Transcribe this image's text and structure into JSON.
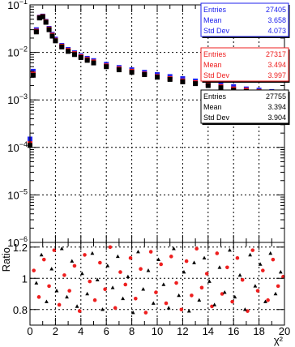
{
  "chart_data": [
    {
      "type": "scatter",
      "panel": "main",
      "x_range": [
        0,
        20
      ],
      "ylim": [
        1e-06,
        0.1
      ],
      "y_scale": "log",
      "grid": true,
      "y_ticks": [
        {
          "value": 0.1,
          "base": "10",
          "exp": "−1"
        },
        {
          "value": 0.01,
          "base": "10",
          "exp": "−2"
        },
        {
          "value": 0.001,
          "base": "10",
          "exp": "−3"
        },
        {
          "value": 0.0001,
          "base": "10",
          "exp": "−4"
        },
        {
          "value": 1e-05,
          "base": "10",
          "exp": "−5"
        },
        {
          "value": 1e-06,
          "base": "10",
          "exp": "−6"
        }
      ],
      "series": [
        {
          "color": "#1f22ee",
          "points": [
            [
              0.0,
              0.00015
            ],
            [
              0.25,
              0.004
            ],
            [
              0.5,
              0.03
            ],
            [
              0.75,
              0.055
            ],
            [
              1.0,
              0.058
            ],
            [
              1.25,
              0.045
            ],
            [
              1.5,
              0.032
            ],
            [
              1.75,
              0.024
            ],
            [
              2.0,
              0.019
            ],
            [
              2.5,
              0.014
            ],
            [
              3.0,
              0.0115
            ],
            [
              3.5,
              0.0098
            ],
            [
              4.0,
              0.0085
            ],
            [
              4.5,
              0.0075
            ],
            [
              5.0,
              0.0067
            ],
            [
              6.0,
              0.0056
            ],
            [
              7.0,
              0.0048
            ],
            [
              8.0,
              0.0043
            ],
            [
              9.0,
              0.0038
            ],
            [
              10.0,
              0.0034
            ],
            [
              11.0,
              0.0031
            ],
            [
              12.0,
              0.0028
            ],
            [
              13.0,
              0.0025
            ],
            [
              14.0,
              0.0023
            ],
            [
              15.0,
              0.0021
            ],
            [
              16.0,
              0.0019
            ],
            [
              17.0,
              0.0017
            ],
            [
              18.0,
              0.0016
            ],
            [
              19.0,
              0.0015
            ],
            [
              19.75,
              0.0012
            ]
          ]
        },
        {
          "color": "#ee1f1f",
          "points": [
            [
              0.0,
              0.00012
            ],
            [
              0.25,
              0.0035
            ],
            [
              0.5,
              0.028
            ],
            [
              0.75,
              0.054
            ],
            [
              1.0,
              0.057
            ],
            [
              1.25,
              0.044
            ],
            [
              1.5,
              0.031
            ],
            [
              1.75,
              0.023
            ],
            [
              2.0,
              0.018
            ],
            [
              2.5,
              0.0135
            ],
            [
              3.0,
              0.011
            ],
            [
              3.5,
              0.0094
            ],
            [
              4.0,
              0.0081
            ],
            [
              4.5,
              0.0071
            ],
            [
              5.0,
              0.0063
            ],
            [
              6.0,
              0.0052
            ],
            [
              7.0,
              0.0045
            ],
            [
              8.0,
              0.004
            ],
            [
              9.0,
              0.0035
            ],
            [
              10.0,
              0.0031
            ],
            [
              11.0,
              0.0028
            ],
            [
              12.0,
              0.0025
            ],
            [
              13.0,
              0.0023
            ],
            [
              14.0,
              0.0021
            ],
            [
              15.0,
              0.0019
            ],
            [
              16.0,
              0.0017
            ],
            [
              17.0,
              0.0016
            ],
            [
              18.0,
              0.0015
            ],
            [
              19.0,
              0.0014
            ],
            [
              19.75,
              0.0013
            ]
          ]
        },
        {
          "color": "#000000",
          "points": [
            [
              0.0,
              0.00011
            ],
            [
              0.25,
              0.0033
            ],
            [
              0.5,
              0.027
            ],
            [
              0.75,
              0.053
            ],
            [
              1.0,
              0.056
            ],
            [
              1.25,
              0.043
            ],
            [
              1.5,
              0.03
            ],
            [
              1.75,
              0.022
            ],
            [
              2.0,
              0.0175
            ],
            [
              2.5,
              0.013
            ],
            [
              3.0,
              0.0105
            ],
            [
              3.5,
              0.009
            ],
            [
              4.0,
              0.0078
            ],
            [
              4.5,
              0.0068
            ],
            [
              5.0,
              0.006
            ],
            [
              6.0,
              0.005
            ],
            [
              7.0,
              0.0043
            ],
            [
              8.0,
              0.0038
            ],
            [
              9.0,
              0.0034
            ],
            [
              10.0,
              0.003
            ],
            [
              11.0,
              0.0027
            ],
            [
              12.0,
              0.0024
            ],
            [
              13.0,
              0.0022
            ],
            [
              14.0,
              0.002
            ],
            [
              15.0,
              0.0018
            ],
            [
              16.0,
              0.0016
            ],
            [
              17.0,
              0.0015
            ],
            [
              18.0,
              0.0014
            ],
            [
              19.0,
              0.0013
            ],
            [
              19.75,
              0.0012
            ]
          ]
        }
      ]
    },
    {
      "type": "scatter",
      "panel": "ratio",
      "ylabel": "Ratio",
      "xlabel": "χ²",
      "x_range": [
        0,
        20
      ],
      "ylim": [
        0.7,
        1.23
      ],
      "grid": true,
      "x_ticks": [
        "0",
        "2",
        "4",
        "6",
        "8",
        "10",
        "12",
        "14",
        "16",
        "18",
        "20"
      ],
      "y_ticks": [
        {
          "value": 0.8,
          "label": "0.8"
        },
        {
          "value": 1.0,
          "label": "1"
        },
        {
          "value": 1.2,
          "label": "1.2"
        }
      ],
      "series": [
        {
          "color": "#ee1f1f",
          "marker": "circle",
          "points": [
            [
              0.3,
              1.05
            ],
            [
              0.7,
              0.88
            ],
            [
              1.1,
              1.12
            ],
            [
              1.5,
              0.95
            ],
            [
              1.9,
              1.18
            ],
            [
              2.3,
              0.83
            ],
            [
              2.7,
              1.02
            ],
            [
              3.1,
              0.92
            ],
            [
              3.5,
              1.08
            ],
            [
              3.9,
              0.79
            ],
            [
              4.3,
              1.15
            ],
            [
              4.7,
              0.98
            ],
            [
              5.1,
              0.86
            ],
            [
              5.5,
              1.1
            ],
            [
              5.9,
              0.93
            ],
            [
              6.3,
              1.2
            ],
            [
              6.7,
              0.81
            ],
            [
              7.1,
              1.04
            ],
            [
              7.5,
              0.96
            ],
            [
              7.9,
              1.13
            ],
            [
              8.3,
              0.87
            ],
            [
              8.7,
              1.06
            ],
            [
              9.1,
              0.78
            ],
            [
              9.5,
              1.17
            ],
            [
              9.9,
              0.91
            ],
            [
              10.3,
              1.09
            ],
            [
              10.7,
              0.84
            ],
            [
              11.1,
              1.14
            ],
            [
              11.5,
              0.97
            ],
            [
              11.9,
              0.8
            ],
            [
              12.3,
              1.11
            ],
            [
              12.7,
              0.89
            ],
            [
              13.1,
              1.19
            ],
            [
              13.5,
              0.94
            ],
            [
              13.9,
              1.03
            ],
            [
              14.3,
              0.82
            ],
            [
              14.7,
              1.16
            ],
            [
              15.1,
              0.9
            ],
            [
              15.5,
              1.07
            ],
            [
              15.9,
              0.85
            ],
            [
              16.3,
              1.13
            ],
            [
              16.7,
              0.99
            ],
            [
              17.1,
              0.79
            ],
            [
              17.5,
              1.18
            ],
            [
              17.9,
              0.92
            ],
            [
              18.3,
              1.05
            ],
            [
              18.7,
              0.86
            ],
            [
              19.1,
              1.12
            ],
            [
              19.5,
              0.95
            ],
            [
              19.9,
              1.01
            ]
          ]
        },
        {
          "color": "#000000",
          "marker": "triangle",
          "points": [
            [
              0.5,
              0.97
            ],
            [
              0.9,
              1.15
            ],
            [
              1.3,
              0.85
            ],
            [
              1.7,
              1.06
            ],
            [
              2.1,
              0.92
            ],
            [
              2.5,
              1.19
            ],
            [
              2.9,
              0.88
            ],
            [
              3.3,
              1.11
            ],
            [
              3.7,
              0.82
            ],
            [
              4.1,
              1.03
            ],
            [
              4.5,
              0.9
            ],
            [
              4.9,
              1.16
            ],
            [
              5.3,
              0.99
            ],
            [
              5.7,
              0.8
            ],
            [
              6.1,
              1.08
            ],
            [
              6.5,
              0.94
            ],
            [
              6.9,
              1.14
            ],
            [
              7.3,
              0.87
            ],
            [
              7.7,
              1.01
            ],
            [
              8.1,
              0.78
            ],
            [
              8.5,
              1.17
            ],
            [
              8.9,
              0.93
            ],
            [
              9.3,
              1.05
            ],
            [
              9.7,
              0.84
            ],
            [
              10.1,
              1.12
            ],
            [
              10.5,
              0.96
            ],
            [
              10.9,
              0.81
            ],
            [
              11.3,
              1.19
            ],
            [
              11.7,
              0.89
            ],
            [
              12.1,
              1.04
            ],
            [
              12.5,
              0.79
            ],
            [
              12.9,
              1.1
            ],
            [
              13.3,
              0.86
            ],
            [
              13.7,
              1.13
            ],
            [
              14.1,
              0.98
            ],
            [
              14.5,
              0.83
            ],
            [
              14.9,
              1.07
            ],
            [
              15.3,
              0.91
            ],
            [
              15.7,
              1.18
            ],
            [
              16.1,
              0.88
            ],
            [
              16.5,
              1.02
            ],
            [
              16.9,
              0.8
            ],
            [
              17.3,
              1.15
            ],
            [
              17.7,
              0.95
            ],
            [
              18.1,
              1.09
            ],
            [
              18.5,
              0.85
            ],
            [
              18.9,
              1.16
            ],
            [
              19.3,
              0.9
            ],
            [
              19.7,
              1.04
            ]
          ]
        }
      ]
    }
  ],
  "stat_boxes": [
    {
      "color": "#1f22ee",
      "rows": [
        {
          "label": "Entries",
          "value": "27405"
        },
        {
          "label": "Mean",
          "value": "3.658"
        },
        {
          "label": "Std Dev",
          "value": "4.073"
        }
      ]
    },
    {
      "color": "#ee1f1f",
      "rows": [
        {
          "label": "Entries",
          "value": "27317"
        },
        {
          "label": "Mean",
          "value": "3.494"
        },
        {
          "label": "Std Dev",
          "value": "3.997"
        }
      ]
    },
    {
      "color": "#000000",
      "rows": [
        {
          "label": "Entries",
          "value": "27755"
        },
        {
          "label": "Mean",
          "value": "3.394"
        },
        {
          "label": "Std Dev",
          "value": "3.904"
        }
      ]
    }
  ]
}
